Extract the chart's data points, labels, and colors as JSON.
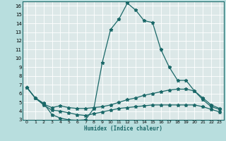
{
  "title": "",
  "xlabel": "Humidex (Indice chaleur)",
  "bg_color": "#b8dede",
  "plot_bg_color": "#dce8e8",
  "grid_color": "#ffffff",
  "line_color": "#1a6868",
  "xlim": [
    -0.5,
    23.5
  ],
  "ylim": [
    3,
    16.5
  ],
  "xticks": [
    0,
    1,
    2,
    3,
    4,
    5,
    6,
    7,
    8,
    9,
    10,
    11,
    12,
    13,
    14,
    15,
    16,
    17,
    18,
    19,
    20,
    21,
    22,
    23
  ],
  "yticks": [
    3,
    4,
    5,
    6,
    7,
    8,
    9,
    10,
    11,
    12,
    13,
    14,
    15,
    16
  ],
  "curve1_x": [
    0,
    1,
    2,
    3,
    4,
    5,
    6,
    7,
    8,
    9,
    10,
    11,
    12,
    13,
    14,
    15,
    16,
    17,
    18,
    19,
    20,
    21,
    22,
    23
  ],
  "curve1_y": [
    6.7,
    5.5,
    4.9,
    3.6,
    3.2,
    3.0,
    2.95,
    3.0,
    4.3,
    9.5,
    13.3,
    14.5,
    16.3,
    15.5,
    14.3,
    14.1,
    11.0,
    9.0,
    7.5,
    7.5,
    6.3,
    5.3,
    4.5,
    4.2
  ],
  "curve2_x": [
    0,
    1,
    2,
    3,
    4,
    5,
    6,
    7,
    8,
    9,
    10,
    11,
    12,
    13,
    14,
    15,
    16,
    17,
    18,
    19,
    20,
    21,
    22,
    23
  ],
  "curve2_y": [
    6.7,
    5.5,
    4.8,
    4.4,
    4.6,
    4.4,
    4.3,
    4.3,
    4.4,
    4.5,
    4.7,
    5.0,
    5.3,
    5.5,
    5.8,
    6.0,
    6.2,
    6.4,
    6.5,
    6.5,
    6.3,
    5.5,
    4.7,
    4.3
  ],
  "curve3_x": [
    0,
    1,
    2,
    3,
    4,
    5,
    6,
    7,
    8,
    9,
    10,
    11,
    12,
    13,
    14,
    15,
    16,
    17,
    18,
    19,
    20,
    21,
    22,
    23
  ],
  "curve3_y": [
    6.7,
    5.5,
    4.7,
    4.1,
    4.0,
    3.8,
    3.6,
    3.5,
    3.7,
    3.9,
    4.1,
    4.3,
    4.4,
    4.5,
    4.6,
    4.7,
    4.7,
    4.7,
    4.7,
    4.7,
    4.7,
    4.5,
    4.2,
    3.9
  ]
}
